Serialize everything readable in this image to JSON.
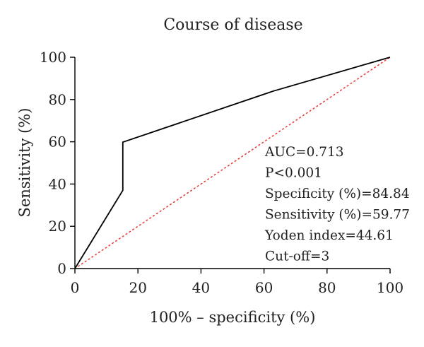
{
  "chart_data": {
    "type": "line",
    "title": "Course of disease",
    "xlabel": "100% – specificity (%)",
    "ylabel": "Sensitivity (%)",
    "xlim": [
      0,
      100
    ],
    "ylim": [
      0,
      100
    ],
    "xticks": [
      0,
      20,
      40,
      60,
      80,
      100
    ],
    "yticks": [
      0,
      20,
      40,
      60,
      80,
      100
    ],
    "grid": false,
    "series": [
      {
        "style": "solid",
        "color": "#000000",
        "x": [
          0,
          15.2,
          15.2,
          63,
          100
        ],
        "y": [
          0,
          37,
          59.8,
          84,
          100
        ]
      },
      {
        "style": "dotted",
        "color": "#e8413a",
        "x": [
          0,
          100
        ],
        "y": [
          0,
          100
        ]
      }
    ],
    "annotations": [
      "AUC=0.713",
      "P<0.001",
      "Specificity (%)=84.84",
      "Sensitivity (%)=59.77",
      "Yoden index=44.61",
      "Cut-off=3"
    ]
  }
}
